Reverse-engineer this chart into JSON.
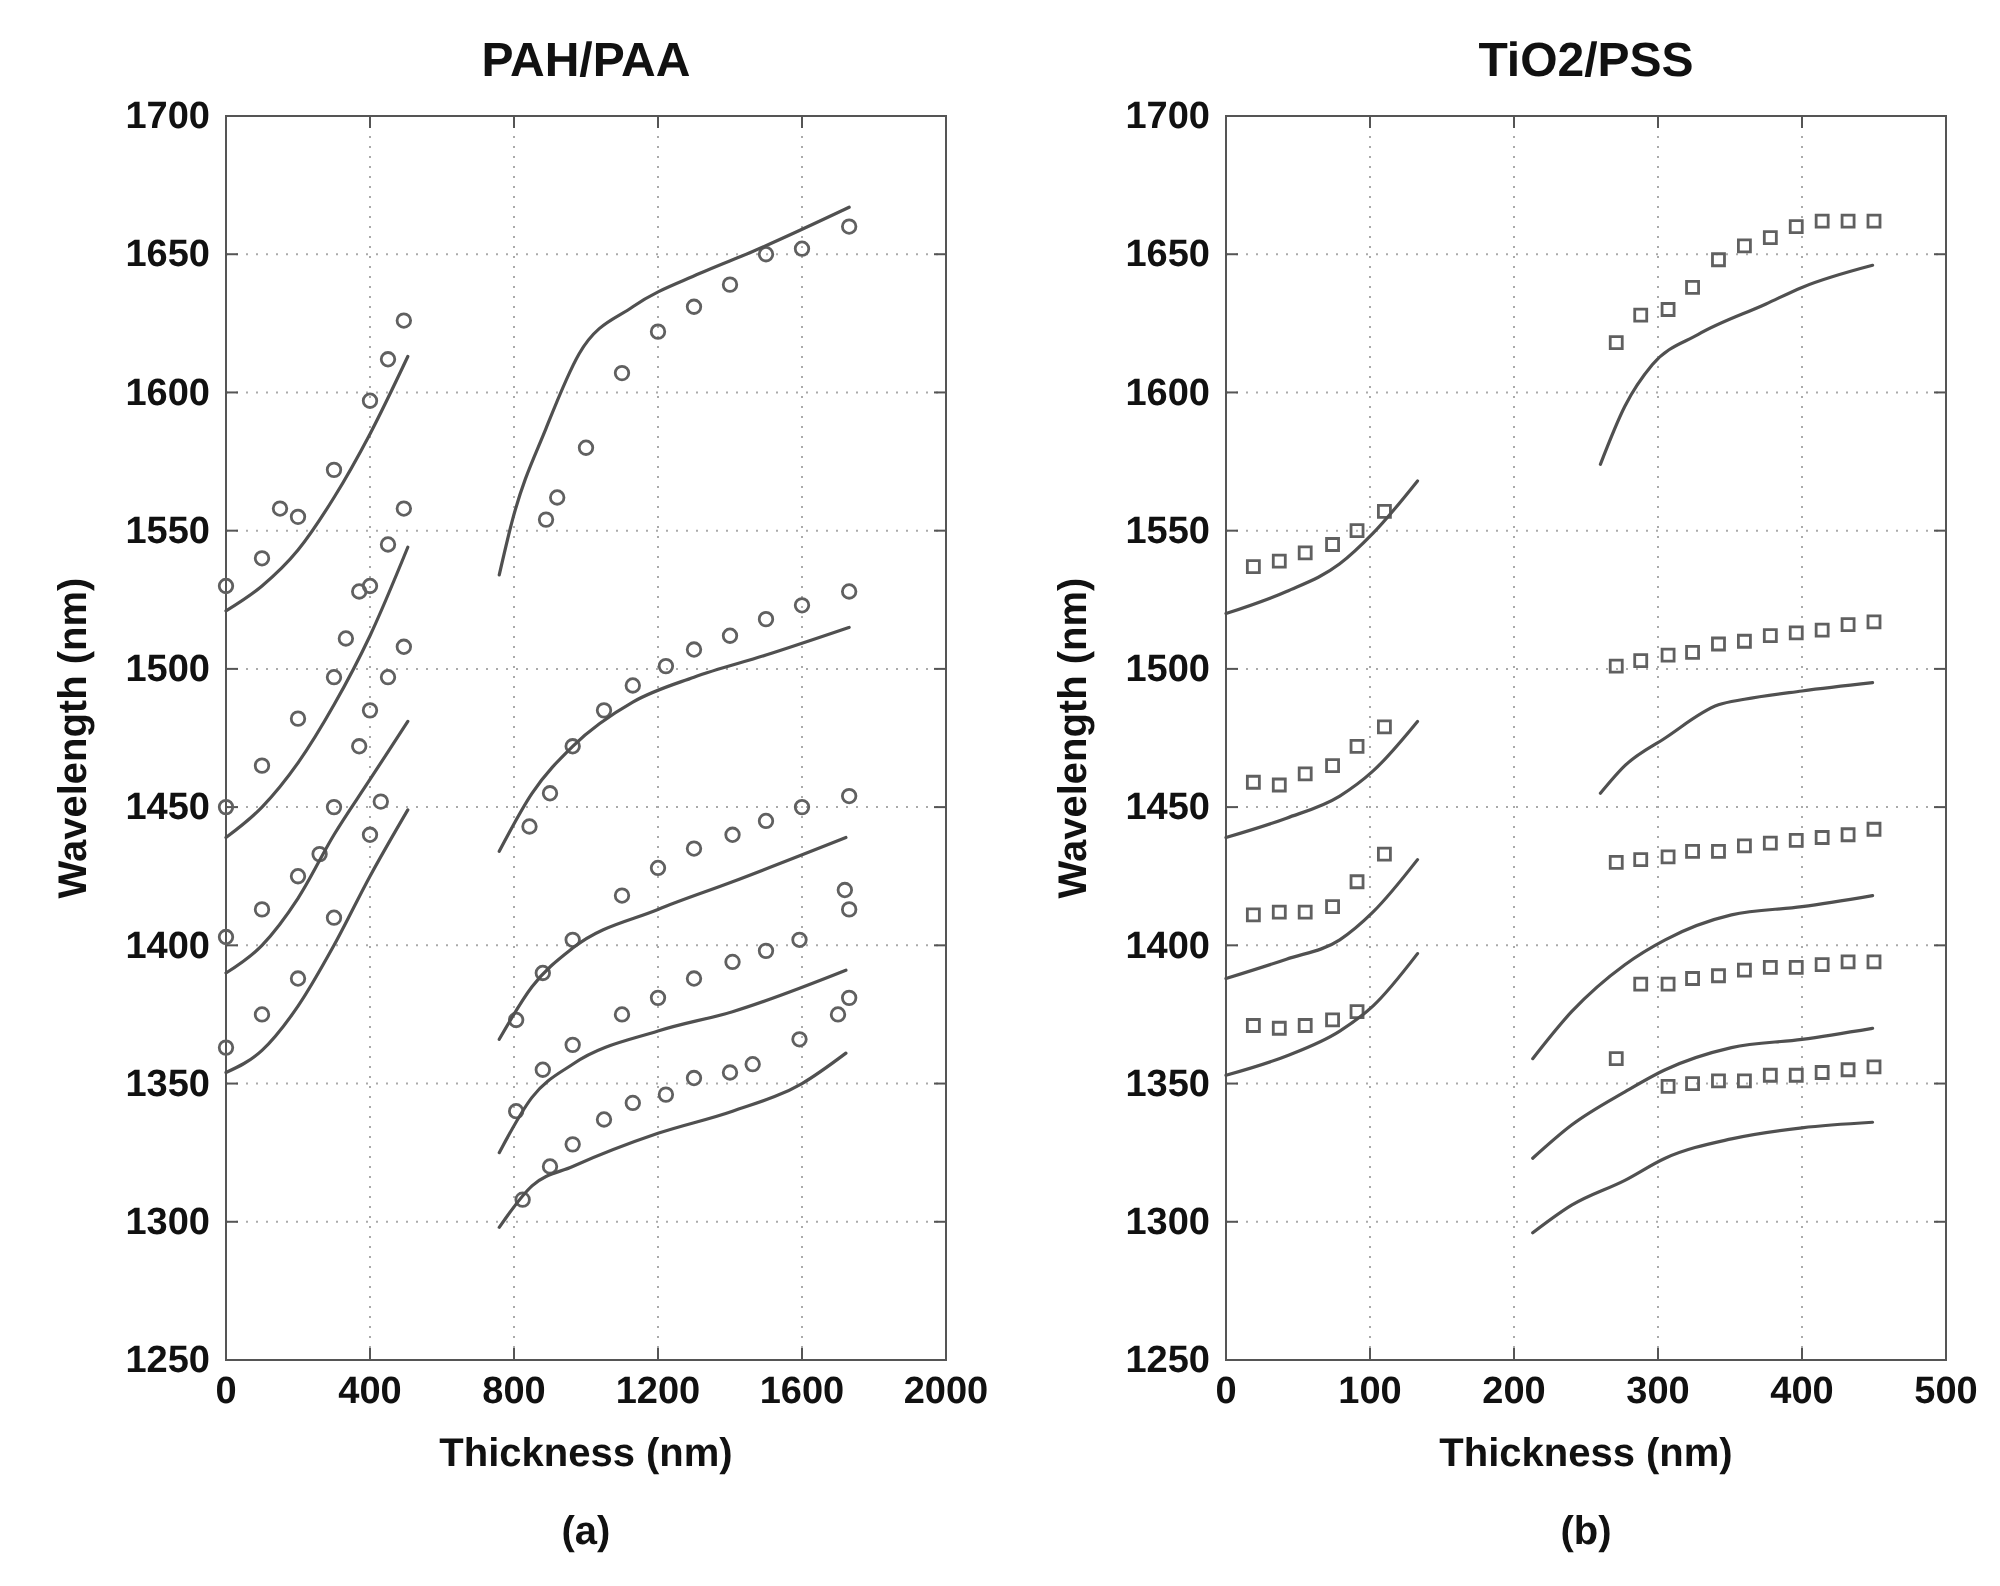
{
  "chart_data": [
    {
      "type": "scatter",
      "title": "PAH/PAA",
      "xlabel": "Thickness (nm)",
      "ylabel": "Wavelength (nm)",
      "annotations": [
        "(a)"
      ],
      "xlim": [
        0,
        2000
      ],
      "xticks": [
        0,
        400,
        800,
        1200,
        1600,
        2000
      ],
      "ylim": [
        1250,
        1700
      ],
      "yticks": [
        1250,
        1300,
        1350,
        1400,
        1450,
        1500,
        1550,
        1600,
        1650,
        1700
      ],
      "grid": true,
      "series": [
        {
          "marker": "circle",
          "color": "#606060",
          "x": [
            0,
            100,
            150,
            200,
            300,
            400,
            450,
            494
          ],
          "values": [
            1530,
            1540,
            1558,
            1555,
            1572,
            1597,
            1612,
            1626
          ]
        },
        {
          "type": "line",
          "color": "#505050",
          "x": [
            0,
            100,
            200,
            300,
            400,
            505
          ],
          "values": [
            1521,
            1530,
            1543,
            1562,
            1585,
            1613
          ]
        },
        {
          "marker": "circle",
          "color": "#606060",
          "x": [
            0,
            100,
            200,
            300,
            333,
            370,
            400,
            450,
            494
          ],
          "values": [
            1450,
            1465,
            1482,
            1497,
            1511,
            1528,
            1530,
            1545,
            1558
          ]
        },
        {
          "type": "line",
          "color": "#505050",
          "x": [
            0,
            100,
            200,
            300,
            400,
            505
          ],
          "values": [
            1439,
            1450,
            1466,
            1487,
            1512,
            1544
          ]
        },
        {
          "marker": "circle",
          "color": "#606060",
          "x": [
            0,
            100,
            200,
            260,
            300,
            370,
            400,
            450,
            494
          ],
          "values": [
            1403,
            1413,
            1425,
            1433,
            1450,
            1472,
            1485,
            1497,
            1508
          ]
        },
        {
          "type": "line",
          "color": "#505050",
          "x": [
            0,
            100,
            200,
            300,
            400,
            505
          ],
          "values": [
            1390,
            1400,
            1417,
            1440,
            1460,
            1481
          ]
        },
        {
          "marker": "circle",
          "color": "#606060",
          "x": [
            0,
            100,
            200,
            300,
            400,
            430
          ],
          "values": [
            1363,
            1375,
            1388,
            1410,
            1440,
            1452
          ]
        },
        {
          "type": "line",
          "color": "#505050",
          "x": [
            0,
            100,
            200,
            300,
            400,
            505
          ],
          "values": [
            1354,
            1362,
            1378,
            1400,
            1425,
            1449
          ]
        },
        {
          "marker": "circle",
          "color": "#606060",
          "x": [
            889,
            920,
            1000,
            1100,
            1200,
            1300,
            1400,
            1500,
            1600,
            1731
          ],
          "values": [
            1554,
            1562,
            1580,
            1607,
            1622,
            1631,
            1639,
            1650,
            1652,
            1660
          ]
        },
        {
          "type": "line",
          "color": "#505050",
          "x": [
            759,
            796,
            889,
            981,
            1130,
            1315,
            1463,
            1731
          ],
          "values": [
            1534,
            1554,
            1587,
            1614,
            1631,
            1643,
            1651,
            1667
          ]
        },
        {
          "marker": "circle",
          "color": "#606060",
          "x": [
            843,
            900,
            963,
            1050,
            1130,
            1222,
            1300,
            1400,
            1500,
            1600,
            1731
          ],
          "values": [
            1443,
            1455,
            1472,
            1485,
            1494,
            1501,
            1507,
            1512,
            1518,
            1523,
            1528
          ]
        },
        {
          "type": "line",
          "color": "#505050",
          "x": [
            759,
            850,
            963,
            1130,
            1300,
            1500,
            1731
          ],
          "values": [
            1434,
            1455,
            1472,
            1488,
            1497,
            1505,
            1515
          ]
        },
        {
          "marker": "circle",
          "color": "#606060",
          "x": [
            806,
            880,
            963,
            1100,
            1200,
            1300,
            1407,
            1500,
            1600,
            1731
          ],
          "values": [
            1373,
            1390,
            1402,
            1418,
            1428,
            1435,
            1440,
            1445,
            1450,
            1454
          ]
        },
        {
          "type": "line",
          "color": "#505050",
          "x": [
            759,
            850,
            963,
            1200,
            1407,
            1722
          ],
          "values": [
            1366,
            1385,
            1399,
            1413,
            1423,
            1439
          ]
        },
        {
          "marker": "circle",
          "color": "#606060",
          "x": [
            806,
            880,
            963,
            1100,
            1200,
            1300,
            1407,
            1500,
            1593,
            1719,
            1731
          ],
          "values": [
            1340,
            1355,
            1364,
            1375,
            1381,
            1388,
            1394,
            1398,
            1402,
            1420,
            1413
          ]
        },
        {
          "type": "line",
          "color": "#505050",
          "x": [
            759,
            850,
            963,
            1200,
            1407,
            1722
          ],
          "values": [
            1325,
            1345,
            1357,
            1369,
            1376,
            1391
          ]
        },
        {
          "marker": "circle",
          "color": "#606060",
          "x": [
            824,
            900,
            963,
            1050,
            1130,
            1222,
            1300,
            1400,
            1463,
            1593,
            1700,
            1731
          ],
          "values": [
            1308,
            1320,
            1328,
            1337,
            1343,
            1346,
            1352,
            1354,
            1357,
            1366,
            1375,
            1381
          ]
        },
        {
          "type": "line",
          "color": "#505050",
          "x": [
            759,
            850,
            963,
            1200,
            1407,
            1600,
            1722
          ],
          "values": [
            1298,
            1313,
            1320,
            1332,
            1340,
            1350,
            1361
          ]
        }
      ]
    },
    {
      "type": "scatter",
      "title": "TiO2/PSS",
      "xlabel": "Thickness (nm)",
      "ylabel": "Wavelength (nm)",
      "annotations": [
        "(b)"
      ],
      "xlim": [
        0,
        500
      ],
      "xticks": [
        0,
        100,
        200,
        300,
        400,
        500
      ],
      "ylim": [
        1250,
        1700
      ],
      "yticks": [
        1250,
        1300,
        1350,
        1400,
        1450,
        1500,
        1550,
        1600,
        1650,
        1700
      ],
      "grid": true,
      "series": [
        {
          "marker": "square",
          "color": "#606060",
          "x": [
            19,
            37,
            55,
            74,
            91,
            110
          ],
          "values": [
            1537,
            1539,
            1542,
            1545,
            1550,
            1557
          ]
        },
        {
          "type": "line",
          "color": "#505050",
          "x": [
            0,
            42,
            79,
            102,
            133
          ],
          "values": [
            1520,
            1528,
            1538,
            1549,
            1568
          ]
        },
        {
          "marker": "square",
          "color": "#606060",
          "x": [
            19,
            37,
            55,
            74,
            91,
            110
          ],
          "values": [
            1459,
            1458,
            1462,
            1465,
            1472,
            1479
          ]
        },
        {
          "type": "line",
          "color": "#505050",
          "x": [
            0,
            42,
            79,
            102,
            133
          ],
          "values": [
            1439,
            1446,
            1454,
            1463,
            1481
          ]
        },
        {
          "marker": "square",
          "color": "#606060",
          "x": [
            19,
            37,
            55,
            74,
            91,
            110
          ],
          "values": [
            1411,
            1412,
            1412,
            1414,
            1423,
            1433
          ]
        },
        {
          "type": "line",
          "color": "#505050",
          "x": [
            0,
            42,
            79,
            102,
            133
          ],
          "values": [
            1388,
            1395,
            1402,
            1412,
            1431
          ]
        },
        {
          "marker": "square",
          "color": "#606060",
          "x": [
            19,
            37,
            55,
            74,
            91
          ],
          "values": [
            1371,
            1370,
            1371,
            1373,
            1376
          ]
        },
        {
          "type": "line",
          "color": "#505050",
          "x": [
            0,
            42,
            79,
            102,
            133
          ],
          "values": [
            1353,
            1360,
            1369,
            1378,
            1397
          ]
        },
        {
          "marker": "square",
          "color": "#606060",
          "x": [
            271,
            288,
            307,
            324,
            342,
            360,
            378,
            396,
            414,
            432,
            450
          ],
          "values": [
            1618,
            1628,
            1630,
            1638,
            1648,
            1653,
            1656,
            1660,
            1662,
            1662,
            1662
          ]
        },
        {
          "type": "line",
          "color": "#505050",
          "x": [
            260,
            277,
            296,
            328,
            375,
            400,
            449
          ],
          "values": [
            1574,
            1595,
            1610,
            1621,
            1632,
            1638,
            1646
          ]
        },
        {
          "marker": "square",
          "color": "#606060",
          "x": [
            271,
            288,
            307,
            324,
            342,
            360,
            378,
            396,
            414,
            432,
            450
          ],
          "values": [
            1501,
            1503,
            1505,
            1506,
            1509,
            1510,
            1512,
            1513,
            1514,
            1516,
            1517
          ]
        },
        {
          "type": "line",
          "color": "#505050",
          "x": [
            260,
            277,
            305,
            342,
            360,
            400,
            449
          ],
          "values": [
            1455,
            1465,
            1475,
            1487,
            1489,
            1492,
            1495
          ]
        },
        {
          "marker": "square",
          "color": "#606060",
          "x": [
            271,
            288,
            307,
            324,
            342,
            360,
            378,
            396,
            414,
            432,
            450
          ],
          "values": [
            1430,
            1431,
            1432,
            1434,
            1434,
            1436,
            1437,
            1438,
            1439,
            1440,
            1442
          ]
        },
        {
          "type": "line",
          "color": "#505050",
          "x": [
            213,
            240,
            277,
            305,
            351,
            400,
            449
          ],
          "values": [
            1359,
            1376,
            1393,
            1402,
            1411,
            1414,
            1418
          ]
        },
        {
          "marker": "square",
          "color": "#606060",
          "x": [
            288,
            307,
            324,
            342,
            360,
            378,
            396,
            414,
            432,
            450
          ],
          "values": [
            1386,
            1386,
            1388,
            1389,
            1391,
            1392,
            1392,
            1393,
            1394,
            1394
          ]
        },
        {
          "type": "line",
          "color": "#505050",
          "x": [
            213,
            240,
            277,
            305,
            351,
            400,
            449
          ],
          "values": [
            1323,
            1335,
            1347,
            1355,
            1363,
            1366,
            1370
          ]
        },
        {
          "marker": "square",
          "color": "#606060",
          "x": [
            271,
            307,
            324,
            342,
            360,
            378,
            396,
            414,
            432,
            450
          ],
          "values": [
            1359,
            1349,
            1350,
            1351,
            1351,
            1353,
            1353,
            1354,
            1355,
            1356
          ]
        },
        {
          "type": "line",
          "color": "#505050",
          "x": [
            213,
            240,
            277,
            305,
            351,
            400,
            449
          ],
          "values": [
            1296,
            1306,
            1315,
            1323,
            1330,
            1334,
            1336
          ]
        }
      ]
    }
  ]
}
